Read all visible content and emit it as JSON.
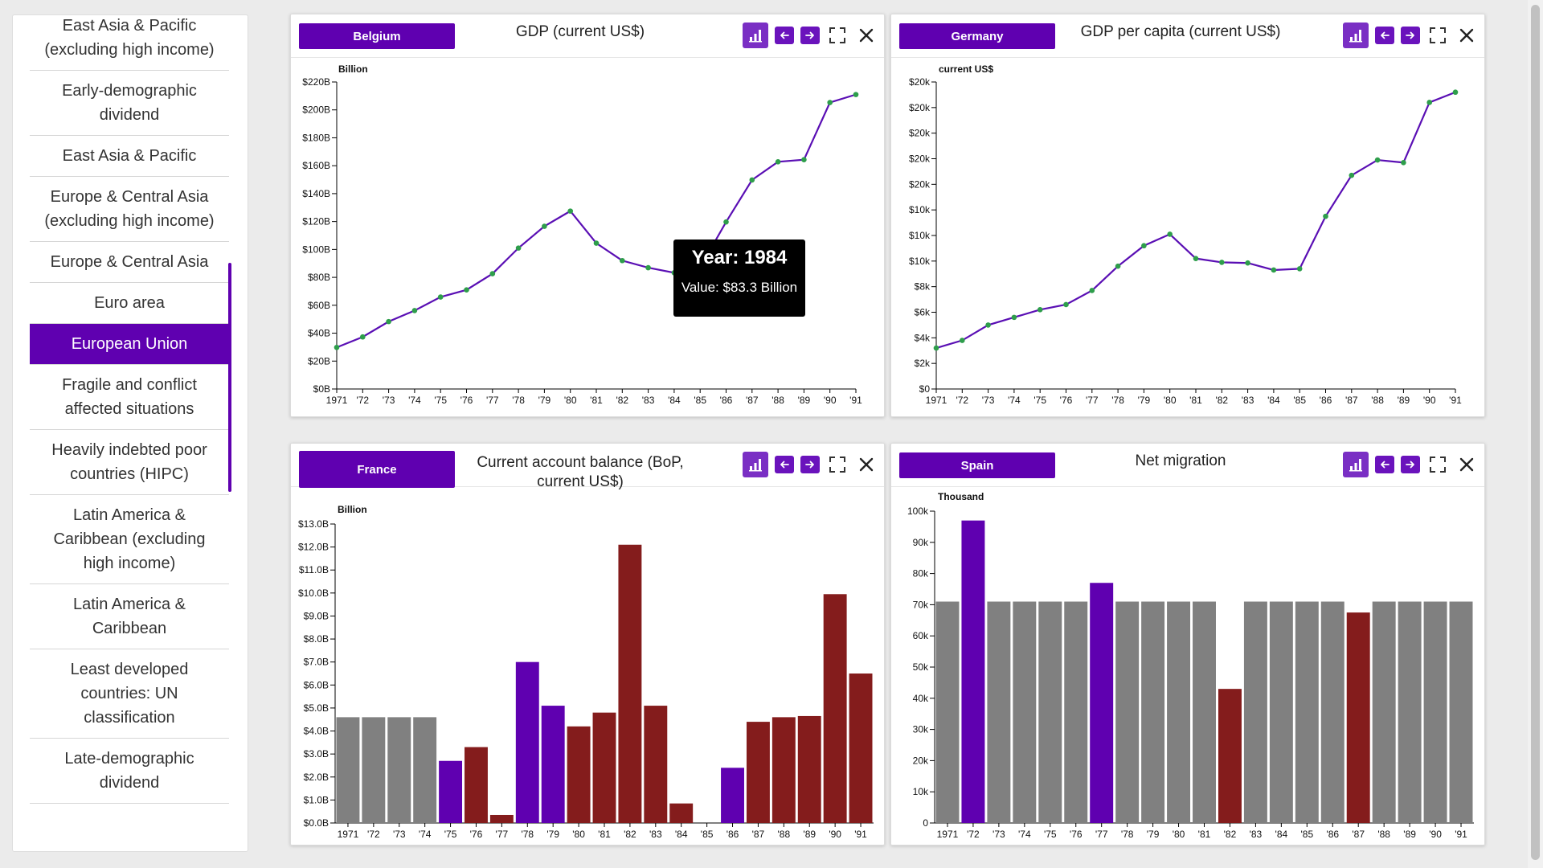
{
  "sidebar": {
    "items": [
      {
        "label": "East Asia & Pacific (excluding high income)",
        "active": false
      },
      {
        "label": "Early-demographic dividend",
        "active": false
      },
      {
        "label": "East Asia & Pacific",
        "active": false
      },
      {
        "label": "Europe & Central Asia (excluding high income)",
        "active": false
      },
      {
        "label": "Europe & Central Asia",
        "active": false
      },
      {
        "label": "Euro area",
        "active": false
      },
      {
        "label": "European Union",
        "active": true
      },
      {
        "label": "Fragile and conflict affected situations",
        "active": false
      },
      {
        "label": "Heavily indebted poor countries (HIPC)",
        "active": false
      },
      {
        "label": "Latin America & Caribbean (excluding high income)",
        "active": false
      },
      {
        "label": "Latin America & Caribbean",
        "active": false
      },
      {
        "label": "Least developed countries: UN classification",
        "active": false
      },
      {
        "label": "Late-demographic dividend",
        "active": false
      }
    ]
  },
  "colors": {
    "accent": "#5f00b0",
    "line": "#5a0fb4",
    "point": "#2e9e4b",
    "bar_gray": "#808080",
    "bar_purple": "#5f00b0",
    "bar_red": "#841c1c"
  },
  "icons": [
    "bar-chart-icon",
    "arrow-left-icon",
    "arrow-right-icon",
    "fullscreen-icon",
    "close-icon"
  ],
  "tooltip": {
    "year": "Year: 1984",
    "value": "Value: $83.3 Billion"
  },
  "panels": [
    {
      "country": "Belgium",
      "title": "GDP (current US$)"
    },
    {
      "country": "Germany",
      "title": "GDP per capita (current US$)"
    },
    {
      "country": "France",
      "title": "Current account balance (BoP, current US$)"
    },
    {
      "country": "Spain",
      "title": "Net migration"
    }
  ],
  "chart_data": [
    {
      "type": "line",
      "title": "GDP (current US$)",
      "ylabel": "Billion",
      "ylim": [
        0,
        220
      ],
      "yticks": [
        "$0B",
        "$20B",
        "$40B",
        "$60B",
        "$80B",
        "$100B",
        "$120B",
        "$140B",
        "$160B",
        "$180B",
        "$200B",
        "$220B"
      ],
      "x_tick_labels": [
        "1971",
        "'72",
        "'73",
        "'74",
        "'75",
        "'76",
        "'77",
        "'78",
        "'79",
        "'80",
        "'81",
        "'82",
        "'83",
        "'84",
        "'85",
        "'86",
        "'87",
        "'88",
        "'89",
        "'90",
        "'91"
      ],
      "x": [
        1971,
        1972,
        1973,
        1974,
        1975,
        1976,
        1977,
        1978,
        1979,
        1980,
        1981,
        1982,
        1983,
        1984,
        1985,
        1986,
        1987,
        1988,
        1989,
        1990,
        1991
      ],
      "values": [
        29.8,
        37.3,
        48.3,
        56.2,
        65.9,
        71.0,
        82.6,
        101.0,
        116.6,
        127.5,
        104.5,
        92.0,
        86.9,
        83.3,
        87.1,
        119.7,
        149.8,
        162.8,
        164.3,
        205.3,
        211.0
      ]
    },
    {
      "type": "line",
      "title": "GDP per capita (current US$)",
      "ylabel": "current US$",
      "ylim": [
        0,
        24000
      ],
      "yticks": [
        "$0",
        "$2k",
        "$4k",
        "$6k",
        "$8k",
        "$10k",
        "$10k",
        "$10k",
        "$20k",
        "$20k",
        "$20k",
        "$20k",
        "$20k"
      ],
      "x_tick_labels": [
        "1971",
        "'72",
        "'73",
        "'74",
        "'75",
        "'76",
        "'77",
        "'78",
        "'79",
        "'80",
        "'81",
        "'82",
        "'83",
        "'84",
        "'85",
        "'86",
        "'87",
        "'88",
        "'89",
        "'90",
        "'91"
      ],
      "x": [
        1971,
        1972,
        1973,
        1974,
        1975,
        1976,
        1977,
        1978,
        1979,
        1980,
        1981,
        1982,
        1983,
        1984,
        1985,
        1986,
        1987,
        1988,
        1989,
        1990,
        1991
      ],
      "values": [
        3200,
        3800,
        5000,
        5600,
        6200,
        6600,
        7700,
        9600,
        11200,
        12100,
        10200,
        9900,
        9850,
        9300,
        9400,
        13500,
        16700,
        17900,
        17700,
        22400,
        23200
      ]
    },
    {
      "type": "bar",
      "title": "Current account balance (BoP, current US$)",
      "ylabel": "Billion",
      "ylim": [
        0,
        13
      ],
      "yticks": [
        "$0.0B",
        "$1.0B",
        "$2.0B",
        "$3.0B",
        "$4.0B",
        "$5.0B",
        "$6.0B",
        "$7.0B",
        "$8.0B",
        "$9.0B",
        "$10.0B",
        "$11.0B",
        "$12.0B",
        "$13.0B"
      ],
      "x_tick_labels": [
        "1971",
        "'72",
        "'73",
        "'74",
        "'75",
        "'76",
        "'77",
        "'78",
        "'79",
        "'80",
        "'81",
        "'82",
        "'83",
        "'84",
        "'85",
        "'86",
        "'87",
        "'88",
        "'89",
        "'90",
        "'91"
      ],
      "values": [
        4.6,
        4.6,
        4.6,
        4.6,
        2.7,
        3.3,
        0.35,
        7.0,
        5.1,
        4.2,
        4.8,
        12.1,
        5.1,
        0.85,
        0.0,
        2.4,
        4.4,
        4.6,
        4.65,
        9.95,
        6.5
      ],
      "bar_colors": [
        "gray",
        "gray",
        "gray",
        "gray",
        "purple",
        "red",
        "red",
        "purple",
        "purple",
        "red",
        "red",
        "red",
        "red",
        "red",
        "red",
        "purple",
        "red",
        "red",
        "red",
        "red",
        "red"
      ]
    },
    {
      "type": "bar",
      "title": "Net migration",
      "ylabel": "Thousand",
      "ylim": [
        0,
        100
      ],
      "yticks": [
        "0",
        "10k",
        "20k",
        "30k",
        "40k",
        "50k",
        "60k",
        "70k",
        "80k",
        "90k",
        "100k"
      ],
      "x_tick_labels": [
        "1971",
        "'72",
        "'73",
        "'74",
        "'75",
        "'76",
        "'77",
        "'78",
        "'79",
        "'80",
        "'81",
        "'82",
        "'83",
        "'84",
        "'85",
        "'86",
        "'87",
        "'88",
        "'89",
        "'90",
        "'91"
      ],
      "values": [
        71,
        97,
        71,
        71,
        71,
        71,
        77,
        71,
        71,
        71,
        71,
        43,
        71,
        71,
        71,
        71,
        67.5,
        71,
        71,
        71,
        71
      ],
      "bar_colors": [
        "gray",
        "purple",
        "gray",
        "gray",
        "gray",
        "gray",
        "purple",
        "gray",
        "gray",
        "gray",
        "gray",
        "red",
        "gray",
        "gray",
        "gray",
        "gray",
        "red",
        "gray",
        "gray",
        "gray",
        "gray"
      ]
    }
  ]
}
